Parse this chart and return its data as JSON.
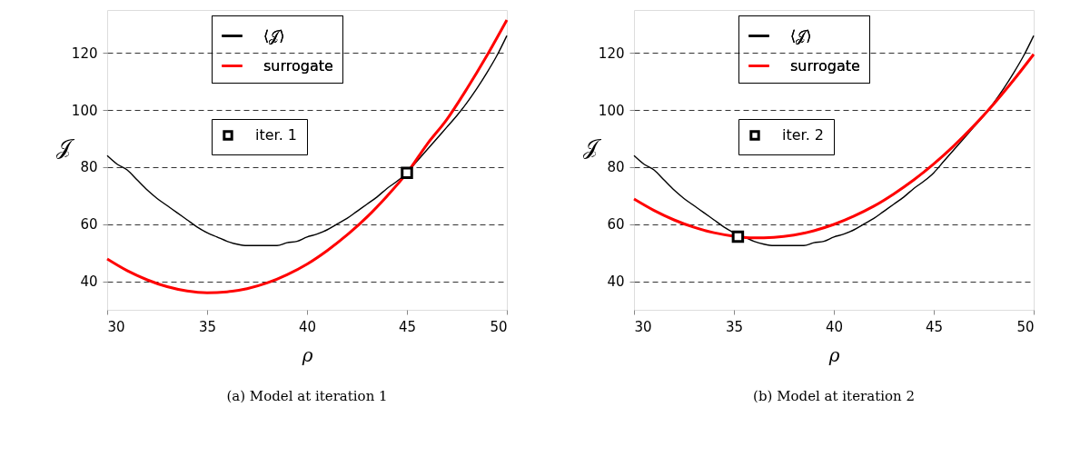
{
  "chart_data": [
    {
      "type": "line",
      "title": "(a)  Model at iteration 1",
      "xlabel": "ρ",
      "ylabel": "𝒥",
      "xlim": [
        30,
        50
      ],
      "xticks": [
        30,
        35,
        40,
        45,
        50
      ],
      "ylim": [
        30,
        135
      ],
      "yticks": [
        40,
        60,
        80,
        100,
        120
      ],
      "grid": "y",
      "legend": "top",
      "series": [
        {
          "name": "⟨𝒥⟩",
          "color": "#000000",
          "x": [
            30,
            30.5,
            31,
            31.5,
            32,
            32.5,
            33,
            33.5,
            34,
            34.5,
            35,
            35.5,
            36,
            36.5,
            37,
            37.5,
            38,
            38.5,
            39,
            39.5,
            40,
            40.5,
            41,
            41.5,
            42,
            42.5,
            43,
            43.5,
            44,
            44.5,
            45,
            45.5,
            46,
            46.5,
            47,
            47.5,
            48,
            48.5,
            49,
            49.5,
            50
          ],
          "values": [
            84,
            81,
            79,
            75.5,
            72,
            69,
            66.5,
            64,
            61.5,
            59,
            57,
            55.5,
            54,
            53,
            52.5,
            52.5,
            52.5,
            52.5,
            53.5,
            54,
            55.5,
            56.5,
            58,
            60,
            62,
            64.5,
            67,
            69.5,
            72.5,
            75,
            78,
            82,
            86,
            90,
            94,
            98,
            102.5,
            107.5,
            113,
            119,
            126
          ]
        },
        {
          "name": "surrogate",
          "color": "#ff0000",
          "x": [
            30,
            31,
            32,
            33,
            34,
            35,
            36,
            37,
            38,
            39,
            40,
            41,
            42,
            43,
            44,
            45,
            46,
            47,
            48,
            49,
            50
          ],
          "values": [
            47.8,
            43.7,
            40.5,
            38.1,
            36.6,
            36.0,
            36.3,
            37.4,
            39.4,
            42.3,
            46.0,
            50.7,
            56.2,
            62.5,
            69.8,
            77.9,
            87.9,
            96.7,
            107.4,
            119.0,
            131.5
          ]
        },
        {
          "name": "iter. 1",
          "type": "scatter",
          "marker": "square",
          "color": "#000000",
          "x": [
            45
          ],
          "values": [
            78
          ]
        }
      ]
    },
    {
      "type": "line",
      "title": "(b)  Model at iteration 2",
      "xlabel": "ρ",
      "ylabel": "𝒥",
      "xlim": [
        30,
        50
      ],
      "xticks": [
        30,
        35,
        40,
        45,
        50
      ],
      "ylim": [
        30,
        135
      ],
      "yticks": [
        40,
        60,
        80,
        100,
        120
      ],
      "grid": "y",
      "legend": "top",
      "series": [
        {
          "name": "⟨𝒥⟩",
          "color": "#000000",
          "x": [
            30,
            30.5,
            31,
            31.5,
            32,
            32.5,
            33,
            33.5,
            34,
            34.5,
            35,
            35.5,
            36,
            36.5,
            37,
            37.5,
            38,
            38.5,
            39,
            39.5,
            40,
            40.5,
            41,
            41.5,
            42,
            42.5,
            43,
            43.5,
            44,
            44.5,
            45,
            45.5,
            46,
            46.5,
            47,
            47.5,
            48,
            48.5,
            49,
            49.5,
            50
          ],
          "values": [
            84,
            81,
            79,
            75.5,
            72,
            69,
            66.5,
            64,
            61.5,
            59,
            57,
            55.5,
            54,
            53,
            52.5,
            52.5,
            52.5,
            52.5,
            53.5,
            54,
            55.5,
            56.5,
            58,
            60,
            62,
            64.5,
            67,
            69.5,
            72.5,
            75,
            78,
            82,
            86,
            90,
            94,
            98,
            102.5,
            107.5,
            113,
            119,
            126
          ]
        },
        {
          "name": "surrogate",
          "color": "#ff0000",
          "x": [
            30,
            31,
            32,
            33,
            34,
            35,
            36,
            37,
            38,
            39,
            40,
            41,
            42,
            43,
            44,
            45,
            46,
            47,
            48,
            49,
            50
          ],
          "values": [
            68.8,
            64.8,
            61.5,
            58.9,
            57.0,
            55.8,
            55.2,
            55.4,
            56.2,
            57.7,
            59.9,
            62.8,
            66.3,
            70.6,
            75.5,
            81.1,
            87.4,
            94.4,
            102.1,
            110.5,
            119.5
          ]
        },
        {
          "name": "iter. 2",
          "type": "scatter",
          "marker": "square",
          "color": "#000000",
          "x": [
            35.2
          ],
          "values": [
            55.6
          ]
        }
      ]
    }
  ]
}
